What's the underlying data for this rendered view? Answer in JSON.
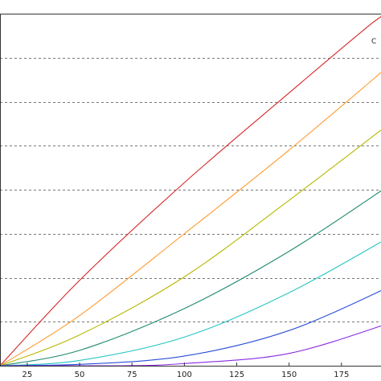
{
  "chart_data": {
    "type": "line",
    "title": "",
    "xlabel": "",
    "ylabel": "",
    "x_ticks": [
      25,
      50,
      75,
      100,
      125,
      150,
      175
    ],
    "xlim": [
      12,
      200
    ],
    "ylim": [
      0,
      8
    ],
    "grid": "horizontal dashed",
    "corner_label": "C",
    "series": [
      {
        "color": "#d62728",
        "x": [
          12,
          50,
          100,
          150,
          190,
          200
        ],
        "y": [
          0,
          1.94,
          4.16,
          6.2,
          7.8,
          8.1
        ]
      },
      {
        "color": "#ff9a2e",
        "x": [
          12,
          50,
          100,
          150,
          200
        ],
        "y": [
          0,
          1.14,
          3.0,
          4.9,
          6.91
        ]
      },
      {
        "color": "#b5b800",
        "x": [
          12,
          50,
          100,
          150,
          200
        ],
        "y": [
          0,
          0.7,
          2.02,
          3.76,
          5.58
        ]
      },
      {
        "color": "#1f8a70",
        "x": [
          12,
          50,
          100,
          150,
          200
        ],
        "y": [
          0,
          0.35,
          1.3,
          2.6,
          4.17
        ]
      },
      {
        "color": "#27c4c4",
        "x": [
          12,
          50,
          100,
          150,
          200
        ],
        "y": [
          0,
          0.12,
          0.65,
          1.66,
          2.98
        ]
      },
      {
        "color": "#2a4fd6",
        "x": [
          12,
          50,
          100,
          150,
          200
        ],
        "y": [
          0,
          0.03,
          0.22,
          0.8,
          1.84
        ]
      },
      {
        "color": "#8a2be2",
        "x": [
          12,
          70,
          100,
          150,
          200
        ],
        "y": [
          0,
          0.0,
          0.05,
          0.28,
          1.0
        ]
      }
    ]
  }
}
